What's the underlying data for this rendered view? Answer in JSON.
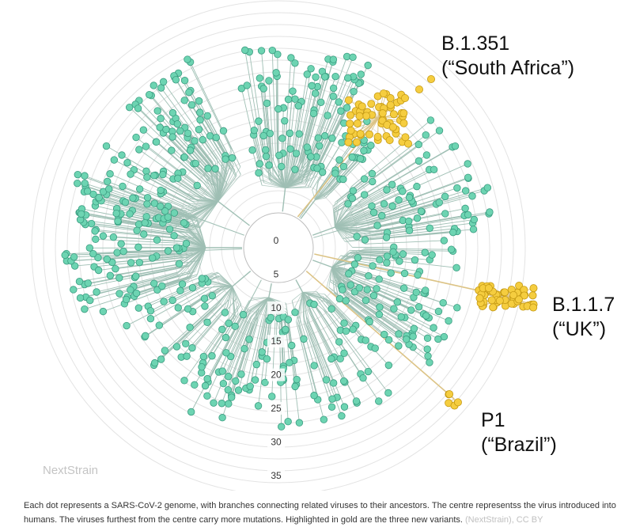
{
  "labels": {
    "south_africa": {
      "name": "B.1.351",
      "nick": "(“South Africa”)"
    },
    "uk": {
      "name": "B.1.1.7",
      "nick": "(“UK”)"
    },
    "brazil": {
      "name": "P1",
      "nick": "(“Brazil”)"
    }
  },
  "watermark": "NextStrain",
  "caption": {
    "text": "Each dot represents a SARS-CoV-2 genome, with branches connecting related viruses to their ancestors. The centre representss the virus introduced into humans. The viruses furthest from the centre carry more mutations. Highlighted in gold are the three new variants.",
    "credit": "(NextStrain), CC BY"
  },
  "chart_data": {
    "type": "radial-phylogenetic-tree",
    "radial_scale_labels": [
      "0",
      "5",
      "10",
      "15",
      "20",
      "25",
      "30",
      "35"
    ],
    "colors": {
      "genome": "#6dd4b2",
      "variant": "#f5cd3f",
      "branch": "#9fbfb4",
      "variant_branch": "#dcc385",
      "rings": "#e3e3e3"
    }
  }
}
